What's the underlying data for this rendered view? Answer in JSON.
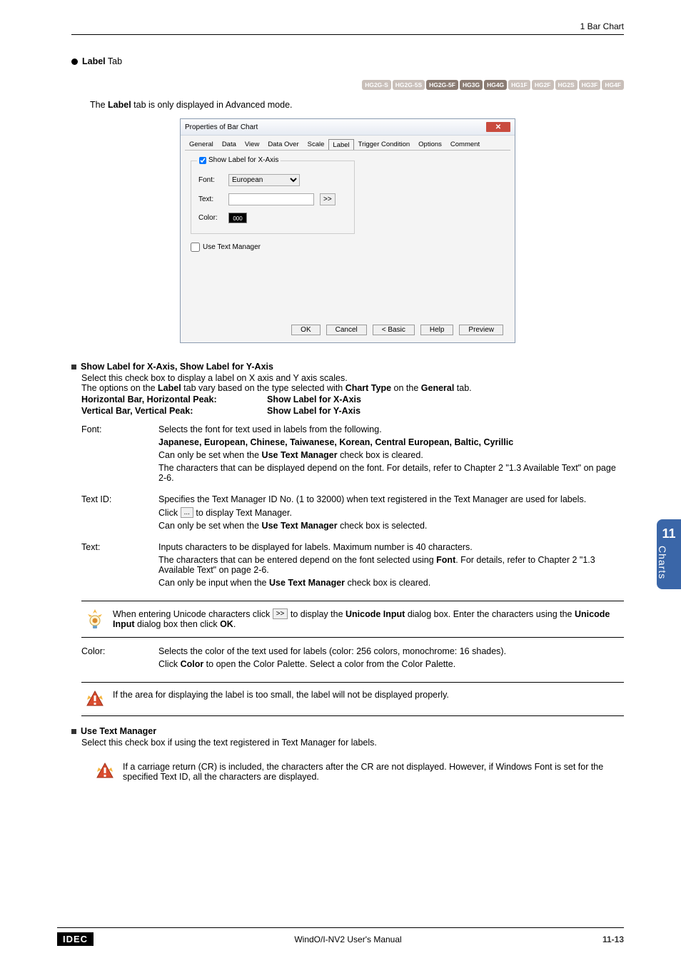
{
  "header": {
    "breadcrumb": "1 Bar Chart"
  },
  "section": {
    "title_bold": "Label",
    "title_rest": " Tab"
  },
  "hg_badges": [
    {
      "label": "HG2G-S",
      "enabled": false
    },
    {
      "label": "HG2G-5S",
      "enabled": false
    },
    {
      "label": "HG2G-5F",
      "enabled": true
    },
    {
      "label": "HG3G",
      "enabled": true
    },
    {
      "label": "HG4G",
      "enabled": true
    },
    {
      "label": "HG1F",
      "enabled": false
    },
    {
      "label": "HG2F",
      "enabled": false
    },
    {
      "label": "HG2S",
      "enabled": false
    },
    {
      "label": "HG3F",
      "enabled": false
    },
    {
      "label": "HG4F",
      "enabled": false
    }
  ],
  "intro_prefix": "The ",
  "intro_bold": "Label",
  "intro_suffix": " tab is only displayed in Advanced mode.",
  "dialog": {
    "title": "Properties of Bar Chart",
    "tabs": [
      "General",
      "Data",
      "View",
      "Data Over",
      "Scale",
      "Label",
      "Trigger Condition",
      "Options",
      "Comment"
    ],
    "active_tab": "Label",
    "show_label_x": "Show Label for X-Axis",
    "font_label": "Font:",
    "font_value": "European",
    "text_label": "Text:",
    "text_value": "",
    "expand_btn": ">>",
    "color_label": "Color:",
    "color_value": "000",
    "use_text_mgr": "Use Text Manager",
    "btns": {
      "ok": "OK",
      "cancel": "Cancel",
      "basic": "< Basic",
      "help": "Help",
      "preview": "Preview"
    }
  },
  "xy_block": {
    "title": "Show Label for X-Axis, Show Label for Y-Axis",
    "line1": "Select this check box to display a label on X axis and Y axis scales.",
    "line2_a": "The options on the ",
    "line2_b": "Label",
    "line2_c": " tab vary based on the type selected with ",
    "line2_d": "Chart Type",
    "line2_e": " on the ",
    "line2_f": "General",
    "line2_g": " tab.",
    "row1_l": "Horizontal Bar, Horizontal Peak:",
    "row1_r": "Show Label for X-Axis",
    "row2_l": "Vertical Bar, Vertical Peak:",
    "row2_r": "Show Label for Y-Axis"
  },
  "defs": {
    "font": {
      "term": "Font:",
      "p1": "Selects the font for text used in labels from the following.",
      "p2": "Japanese, European, Chinese, Taiwanese, Korean, Central European, Baltic, Cyrillic",
      "p3a": "Can only be set when the ",
      "p3b": "Use Text Manager",
      "p3c": " check box is cleared.",
      "p4": "The characters that can be displayed depend on the font. For details, refer to Chapter 2 \"1.3 Available Text\" on page 2-6."
    },
    "textid": {
      "term": "Text ID:",
      "p1": "Specifies the Text Manager ID No. (1 to 32000) when text registered in the Text Manager are used for labels.",
      "p2a": "Click ",
      "p2b": " to display Text Manager.",
      "p3a": "Can only be set when the ",
      "p3b": "Use Text Manager",
      "p3c": " check box is selected."
    },
    "text": {
      "term": "Text:",
      "p1": "Inputs characters to be displayed for labels. Maximum number is 40 characters.",
      "p2a": "The characters that can be entered depend on the font selected using ",
      "p2b": "Font",
      "p2c": ". For details, refer to Chapter 2 \"1.3 Available Text\" on page 2-6.",
      "p3a": "Can only be input when the ",
      "p3b": "Use Text Manager",
      "p3c": " check box is cleared."
    },
    "color": {
      "term": "Color:",
      "p1": "Selects the color of the text used for labels (color: 256 colors, monochrome: 16 shades).",
      "p2a": "Click ",
      "p2b": "Color",
      "p2c": " to open the Color Palette. Select a color from the Color Palette."
    }
  },
  "tip1_a": "When entering Unicode characters click ",
  "tip1_b": " to display the ",
  "tip1_c": "Unicode Input",
  "tip1_d": " dialog box. Enter the characters using the ",
  "tip1_e": "Unicode Input",
  "tip1_f": " dialog box then click ",
  "tip1_g": "OK",
  "tip1_h": ".",
  "warn1": "If the area for displaying the label is too small, the label will not be displayed properly.",
  "utm": {
    "title": "Use Text Manager",
    "line": "Select this check box if using the text registered in Text Manager for labels."
  },
  "warn2": "If a carriage return (CR) is included, the characters after the CR are not displayed. However, if Windows Font is set for the specified Text ID, all the characters are displayed.",
  "side": {
    "num": "11",
    "label": "Charts"
  },
  "footer": {
    "logo": "IDEC",
    "center": "WindO/I-NV2 User's Manual",
    "page": "11-13"
  },
  "icons": {
    "ellipsis": "...",
    "dbl": ">>"
  }
}
